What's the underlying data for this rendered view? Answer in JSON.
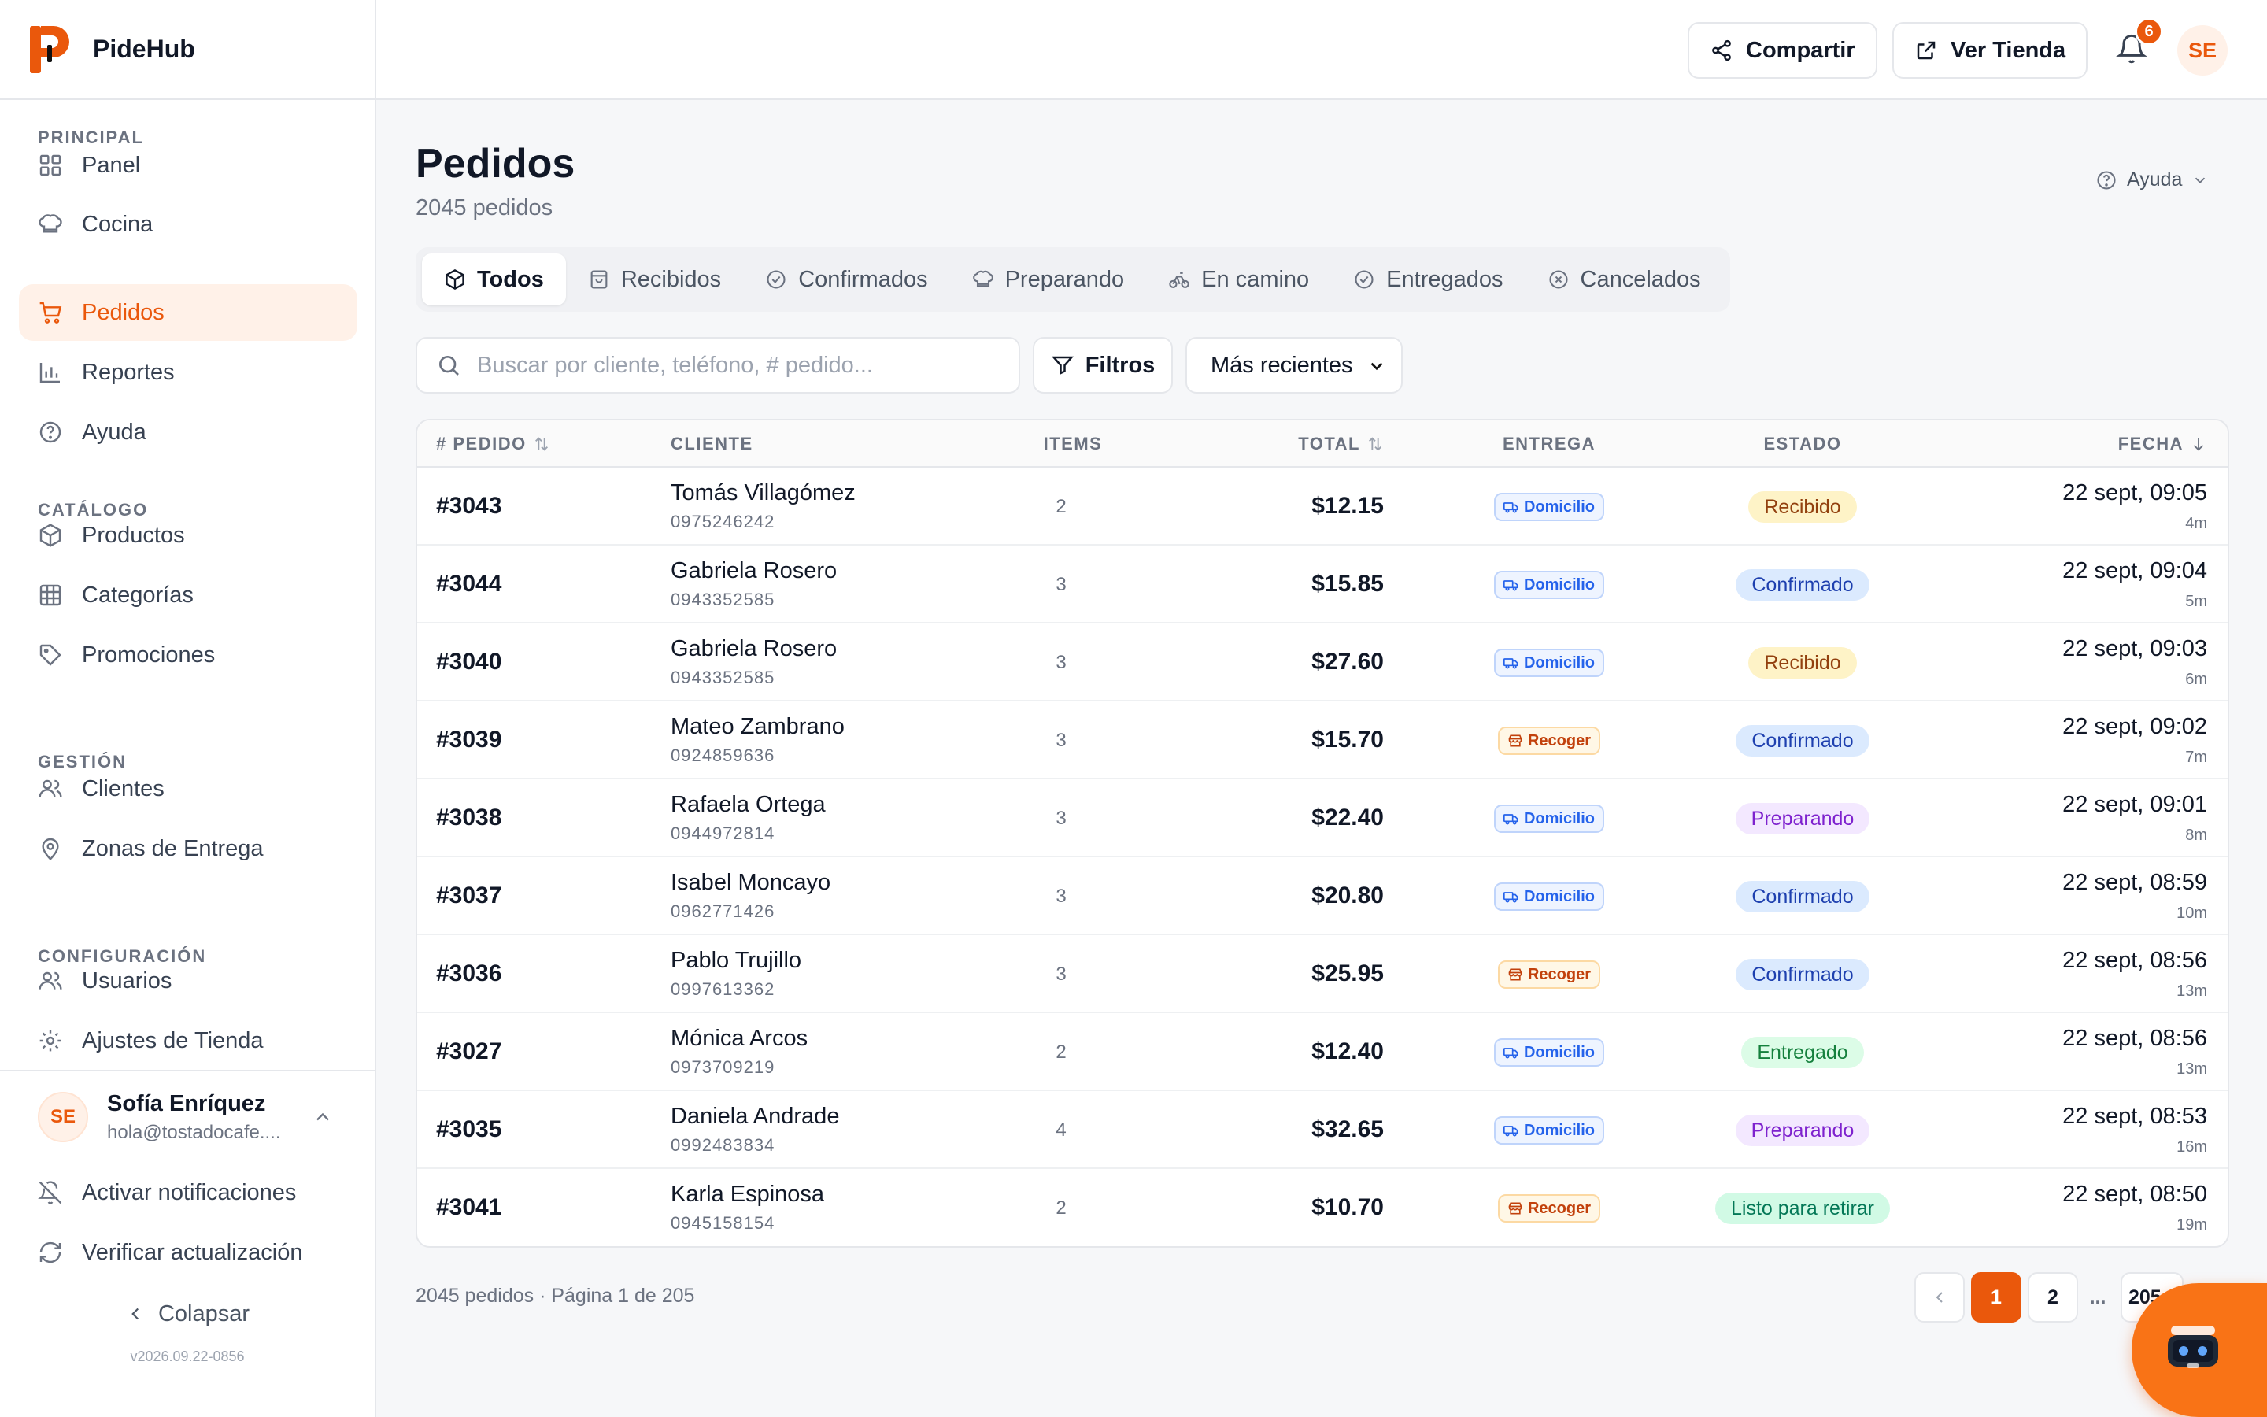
{
  "brand": {
    "name": "PideHub"
  },
  "sidebar": {
    "sections": [
      {
        "title": "PRINCIPAL",
        "items": [
          {
            "label": "Panel",
            "icon": "grid-icon"
          },
          {
            "label": "Cocina",
            "icon": "chef-hat-icon"
          },
          {
            "label": "Pedidos",
            "icon": "cart-icon",
            "active": true
          },
          {
            "label": "Reportes",
            "icon": "bar-chart-icon"
          },
          {
            "label": "Ayuda",
            "icon": "help-circle-icon"
          }
        ]
      },
      {
        "title": "CATÁLOGO",
        "items": [
          {
            "label": "Productos",
            "icon": "package-icon"
          },
          {
            "label": "Categorías",
            "icon": "table-grid-icon"
          },
          {
            "label": "Promociones",
            "icon": "tag-icon"
          }
        ]
      },
      {
        "title": "GESTIÓN",
        "items": [
          {
            "label": "Clientes",
            "icon": "users-icon"
          },
          {
            "label": "Zonas de Entrega",
            "icon": "map-pin-icon"
          }
        ]
      },
      {
        "title": "CONFIGURACIÓN",
        "items": [
          {
            "label": "Usuarios",
            "icon": "users-icon"
          },
          {
            "label": "Ajustes de Tienda",
            "icon": "settings-icon"
          }
        ]
      }
    ],
    "user": {
      "initials": "SE",
      "name": "Sofía Enríquez",
      "email": "hola@tostadocafe...."
    },
    "notifications_label": "Activar notificaciones",
    "update_label": "Verificar actualización",
    "collapse_label": "Colapsar",
    "version": "v2026.09.22-0856"
  },
  "topbar": {
    "share_label": "Compartir",
    "store_label": "Ver Tienda",
    "notification_count": "6",
    "avatar_initials": "SE"
  },
  "page": {
    "title": "Pedidos",
    "subtitle": "2045 pedidos",
    "help_label": "Ayuda"
  },
  "tabs": [
    {
      "label": "Todos",
      "icon": "box-icon",
      "active": true
    },
    {
      "label": "Recibidos",
      "icon": "inbox-icon"
    },
    {
      "label": "Confirmados",
      "icon": "check-circle-icon"
    },
    {
      "label": "Preparando",
      "icon": "chef-hat-icon"
    },
    {
      "label": "En camino",
      "icon": "bike-icon"
    },
    {
      "label": "Entregados",
      "icon": "check-circle-icon"
    },
    {
      "label": "Cancelados",
      "icon": "x-circle-icon"
    }
  ],
  "toolbar": {
    "search_placeholder": "Buscar por cliente, teléfono, # pedido...",
    "filter_label": "Filtros",
    "sort_value": "Más recientes"
  },
  "table": {
    "headers": {
      "id": "# PEDIDO",
      "client": "CLIENTE",
      "items": "ITEMS",
      "total": "TOTAL",
      "delivery": "ENTREGA",
      "status": "ESTADO",
      "date": "FECHA"
    },
    "rows": [
      {
        "id": "#3043",
        "name": "Tomás Villagómez",
        "phone": "0975246242",
        "items": "2",
        "total": "$12.15",
        "delivery": "Domicilio",
        "delivery_type": "domicilio",
        "status": "Recibido",
        "status_type": "recibido",
        "date": "22 sept, 09:05",
        "ago": "4m"
      },
      {
        "id": "#3044",
        "name": "Gabriela Rosero",
        "phone": "0943352585",
        "items": "3",
        "total": "$15.85",
        "delivery": "Domicilio",
        "delivery_type": "domicilio",
        "status": "Confirmado",
        "status_type": "confirmado",
        "date": "22 sept, 09:04",
        "ago": "5m"
      },
      {
        "id": "#3040",
        "name": "Gabriela Rosero",
        "phone": "0943352585",
        "items": "3",
        "total": "$27.60",
        "delivery": "Domicilio",
        "delivery_type": "domicilio",
        "status": "Recibido",
        "status_type": "recibido",
        "date": "22 sept, 09:03",
        "ago": "6m"
      },
      {
        "id": "#3039",
        "name": "Mateo Zambrano",
        "phone": "0924859636",
        "items": "3",
        "total": "$15.70",
        "delivery": "Recoger",
        "delivery_type": "recoger",
        "status": "Confirmado",
        "status_type": "confirmado",
        "date": "22 sept, 09:02",
        "ago": "7m"
      },
      {
        "id": "#3038",
        "name": "Rafaela Ortega",
        "phone": "0944972814",
        "items": "3",
        "total": "$22.40",
        "delivery": "Domicilio",
        "delivery_type": "domicilio",
        "status": "Preparando",
        "status_type": "preparando",
        "date": "22 sept, 09:01",
        "ago": "8m"
      },
      {
        "id": "#3037",
        "name": "Isabel Moncayo",
        "phone": "0962771426",
        "items": "3",
        "total": "$20.80",
        "delivery": "Domicilio",
        "delivery_type": "domicilio",
        "status": "Confirmado",
        "status_type": "confirmado",
        "date": "22 sept, 08:59",
        "ago": "10m"
      },
      {
        "id": "#3036",
        "name": "Pablo Trujillo",
        "phone": "0997613362",
        "items": "3",
        "total": "$25.95",
        "delivery": "Recoger",
        "delivery_type": "recoger",
        "status": "Confirmado",
        "status_type": "confirmado",
        "date": "22 sept, 08:56",
        "ago": "13m"
      },
      {
        "id": "#3027",
        "name": "Mónica Arcos",
        "phone": "0973709219",
        "items": "2",
        "total": "$12.40",
        "delivery": "Domicilio",
        "delivery_type": "domicilio",
        "status": "Entregado",
        "status_type": "entregado",
        "date": "22 sept, 08:56",
        "ago": "13m"
      },
      {
        "id": "#3035",
        "name": "Daniela Andrade",
        "phone": "0992483834",
        "items": "4",
        "total": "$32.65",
        "delivery": "Domicilio",
        "delivery_type": "domicilio",
        "status": "Preparando",
        "status_type": "preparando",
        "date": "22 sept, 08:53",
        "ago": "16m"
      },
      {
        "id": "#3041",
        "name": "Karla Espinosa",
        "phone": "0945158154",
        "items": "2",
        "total": "$10.70",
        "delivery": "Recoger",
        "delivery_type": "recoger",
        "status": "Listo para retirar",
        "status_type": "listo",
        "date": "22 sept, 08:50",
        "ago": "19m"
      }
    ]
  },
  "pagination": {
    "info": "2045 pedidos · Página 1 de 205",
    "pages": [
      "1",
      "2",
      "...",
      "205"
    ],
    "current": "1"
  },
  "colors": {
    "accent": "#ea580c",
    "accent_soft": "#fff1e8"
  }
}
